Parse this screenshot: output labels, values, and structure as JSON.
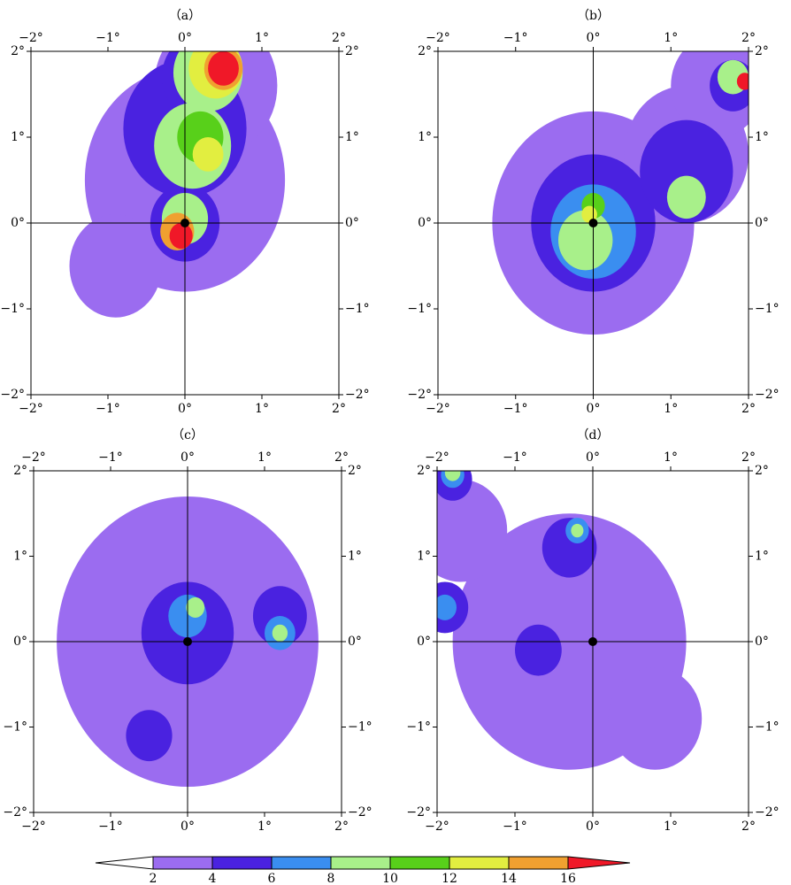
{
  "chart_data": [
    {
      "type": "contour",
      "title": "（a）",
      "xlim": [
        -2,
        2
      ],
      "ylim": [
        -2,
        2
      ],
      "xticks": [
        {
          "value": -2,
          "label": "−2°"
        },
        {
          "value": -1,
          "label": "−1°"
        },
        {
          "value": 0,
          "label": "0°"
        },
        {
          "value": 1,
          "label": "1°"
        },
        {
          "value": 2,
          "label": "2°"
        }
      ],
      "yticks": [
        {
          "value": -2,
          "label": "−2°"
        },
        {
          "value": -1,
          "label": "−1°"
        },
        {
          "value": 0,
          "label": "0°"
        },
        {
          "value": 1,
          "label": "1°"
        },
        {
          "value": 2,
          "label": "2°"
        }
      ],
      "blobs": [
        {
          "x": 0,
          "y": 0.5,
          "r": 1.3,
          "level": 2
        },
        {
          "x": -0.9,
          "y": -0.5,
          "r": 0.6,
          "level": 2
        },
        {
          "x": 0.4,
          "y": 1.6,
          "r": 0.8,
          "level": 2
        },
        {
          "x": 0,
          "y": 1.1,
          "r": 0.8,
          "level": 4
        },
        {
          "x": 0.2,
          "y": 1.7,
          "r": 0.5,
          "level": 4
        },
        {
          "x": 0,
          "y": 0,
          "r": 0.45,
          "level": 4
        },
        {
          "x": 0.1,
          "y": 0.9,
          "r": 0.5,
          "level": 8
        },
        {
          "x": 0,
          "y": 0.05,
          "r": 0.3,
          "level": 8
        },
        {
          "x": 0.3,
          "y": 1.75,
          "r": 0.45,
          "level": 8
        },
        {
          "x": 0.2,
          "y": 1,
          "r": 0.3,
          "level": 10
        },
        {
          "x": 0.3,
          "y": 0.8,
          "r": 0.2,
          "level": 12
        },
        {
          "x": 0.4,
          "y": 1.8,
          "r": 0.35,
          "level": 12
        },
        {
          "x": 0.5,
          "y": 1.8,
          "r": 0.25,
          "level": 14
        },
        {
          "x": -0.1,
          "y": -0.1,
          "r": 0.22,
          "level": 14
        },
        {
          "x": 0.5,
          "y": 1.8,
          "r": 0.2,
          "level": 16
        },
        {
          "x": -0.05,
          "y": -0.15,
          "r": 0.15,
          "level": 16
        }
      ]
    },
    {
      "type": "contour",
      "title": "（b）",
      "xlim": [
        -2,
        2
      ],
      "ylim": [
        -2,
        2
      ],
      "xticks": [
        {
          "value": -2,
          "label": "−2°"
        },
        {
          "value": -1,
          "label": "−1°"
        },
        {
          "value": 0,
          "label": "0°"
        },
        {
          "value": 1,
          "label": "1°"
        },
        {
          "value": 2,
          "label": "2°"
        }
      ],
      "yticks": [
        {
          "value": -2,
          "label": "−2°"
        },
        {
          "value": -1,
          "label": "−1°"
        },
        {
          "value": 0,
          "label": "0°"
        },
        {
          "value": 1,
          "label": "1°"
        },
        {
          "value": 2,
          "label": "2°"
        }
      ],
      "blobs": [
        {
          "x": 0,
          "y": 0,
          "r": 1.3,
          "level": 2
        },
        {
          "x": 1.2,
          "y": 0.8,
          "r": 0.8,
          "level": 2
        },
        {
          "x": 1.6,
          "y": 1.6,
          "r": 0.6,
          "level": 2
        },
        {
          "x": 0,
          "y": 0,
          "r": 0.8,
          "level": 4
        },
        {
          "x": 1.2,
          "y": 0.6,
          "r": 0.6,
          "level": 4
        },
        {
          "x": 1.8,
          "y": 1.6,
          "r": 0.3,
          "level": 4
        },
        {
          "x": 0,
          "y": -0.1,
          "r": 0.55,
          "level": 6
        },
        {
          "x": -0.1,
          "y": -0.2,
          "r": 0.35,
          "level": 8
        },
        {
          "x": 1.2,
          "y": 0.3,
          "r": 0.25,
          "level": 8
        },
        {
          "x": 1.8,
          "y": 1.7,
          "r": 0.2,
          "level": 8
        },
        {
          "x": 0,
          "y": 0.2,
          "r": 0.15,
          "level": 10
        },
        {
          "x": -0.05,
          "y": 0.1,
          "r": 0.1,
          "level": 12
        },
        {
          "x": 1.95,
          "y": 1.65,
          "r": 0.1,
          "level": 16
        }
      ]
    },
    {
      "type": "contour",
      "title": "（c）",
      "xlim": [
        -2,
        2
      ],
      "ylim": [
        -2,
        2
      ],
      "xticks": [
        {
          "value": -2,
          "label": "−2°"
        },
        {
          "value": -1,
          "label": "−1°"
        },
        {
          "value": 0,
          "label": "0°"
        },
        {
          "value": 1,
          "label": "1°"
        },
        {
          "value": 2,
          "label": "2°"
        }
      ],
      "yticks": [
        {
          "value": -2,
          "label": "−2°"
        },
        {
          "value": -1,
          "label": "−1°"
        },
        {
          "value": 0,
          "label": "0°"
        },
        {
          "value": 1,
          "label": "1°"
        },
        {
          "value": 2,
          "label": "2°"
        }
      ],
      "blobs": [
        {
          "x": 0,
          "y": 0,
          "r": 1.7,
          "level": 2
        },
        {
          "x": 0,
          "y": 0.1,
          "r": 0.6,
          "level": 4
        },
        {
          "x": 1.2,
          "y": 0.3,
          "r": 0.35,
          "level": 4
        },
        {
          "x": -0.5,
          "y": -1.1,
          "r": 0.3,
          "level": 4
        },
        {
          "x": 0,
          "y": 0.3,
          "r": 0.25,
          "level": 6
        },
        {
          "x": 1.2,
          "y": 0.1,
          "r": 0.2,
          "level": 6
        },
        {
          "x": 0.1,
          "y": 0.4,
          "r": 0.12,
          "level": 8
        },
        {
          "x": 1.2,
          "y": 0.1,
          "r": 0.1,
          "level": 8
        }
      ]
    },
    {
      "type": "contour",
      "title": "（d）",
      "xlim": [
        -2,
        2
      ],
      "ylim": [
        -2,
        2
      ],
      "xticks": [
        {
          "value": -2,
          "label": "−2°"
        },
        {
          "value": -1,
          "label": "−1°"
        },
        {
          "value": 0,
          "label": "0°"
        },
        {
          "value": 1,
          "label": "1°"
        },
        {
          "value": 2,
          "label": "2°"
        }
      ],
      "yticks": [
        {
          "value": -2,
          "label": "−2°"
        },
        {
          "value": -1,
          "label": "−1°"
        },
        {
          "value": 0,
          "label": "0°"
        },
        {
          "value": 1,
          "label": "1°"
        },
        {
          "value": 2,
          "label": "2°"
        }
      ],
      "blobs": [
        {
          "x": -0.3,
          "y": 0,
          "r": 1.5,
          "level": 2
        },
        {
          "x": 0.8,
          "y": -0.9,
          "r": 0.6,
          "level": 2
        },
        {
          "x": -1.7,
          "y": 1.3,
          "r": 0.6,
          "level": 2
        },
        {
          "x": -0.3,
          "y": 1.1,
          "r": 0.35,
          "level": 4
        },
        {
          "x": -0.7,
          "y": -0.1,
          "r": 0.3,
          "level": 4
        },
        {
          "x": -1.9,
          "y": 0.4,
          "r": 0.3,
          "level": 4
        },
        {
          "x": -1.8,
          "y": 1.9,
          "r": 0.25,
          "level": 4
        },
        {
          "x": -0.2,
          "y": 1.3,
          "r": 0.15,
          "level": 6
        },
        {
          "x": -1.9,
          "y": 0.4,
          "r": 0.15,
          "level": 6
        },
        {
          "x": -1.8,
          "y": 1.95,
          "r": 0.15,
          "level": 6
        },
        {
          "x": -0.2,
          "y": 1.3,
          "r": 0.08,
          "level": 8
        },
        {
          "x": -1.8,
          "y": 1.98,
          "r": 0.1,
          "level": 8
        }
      ]
    },
    {
      "type": "colorbar",
      "levels": [
        2,
        4,
        6,
        8,
        10,
        12,
        14,
        16
      ],
      "colors": [
        "#ffffff",
        "#9b6cf0",
        "#4a22e0",
        "#3a8ef0",
        "#a8f08a",
        "#58d01a",
        "#e2ee40",
        "#f0a030",
        "#f01828"
      ]
    }
  ]
}
